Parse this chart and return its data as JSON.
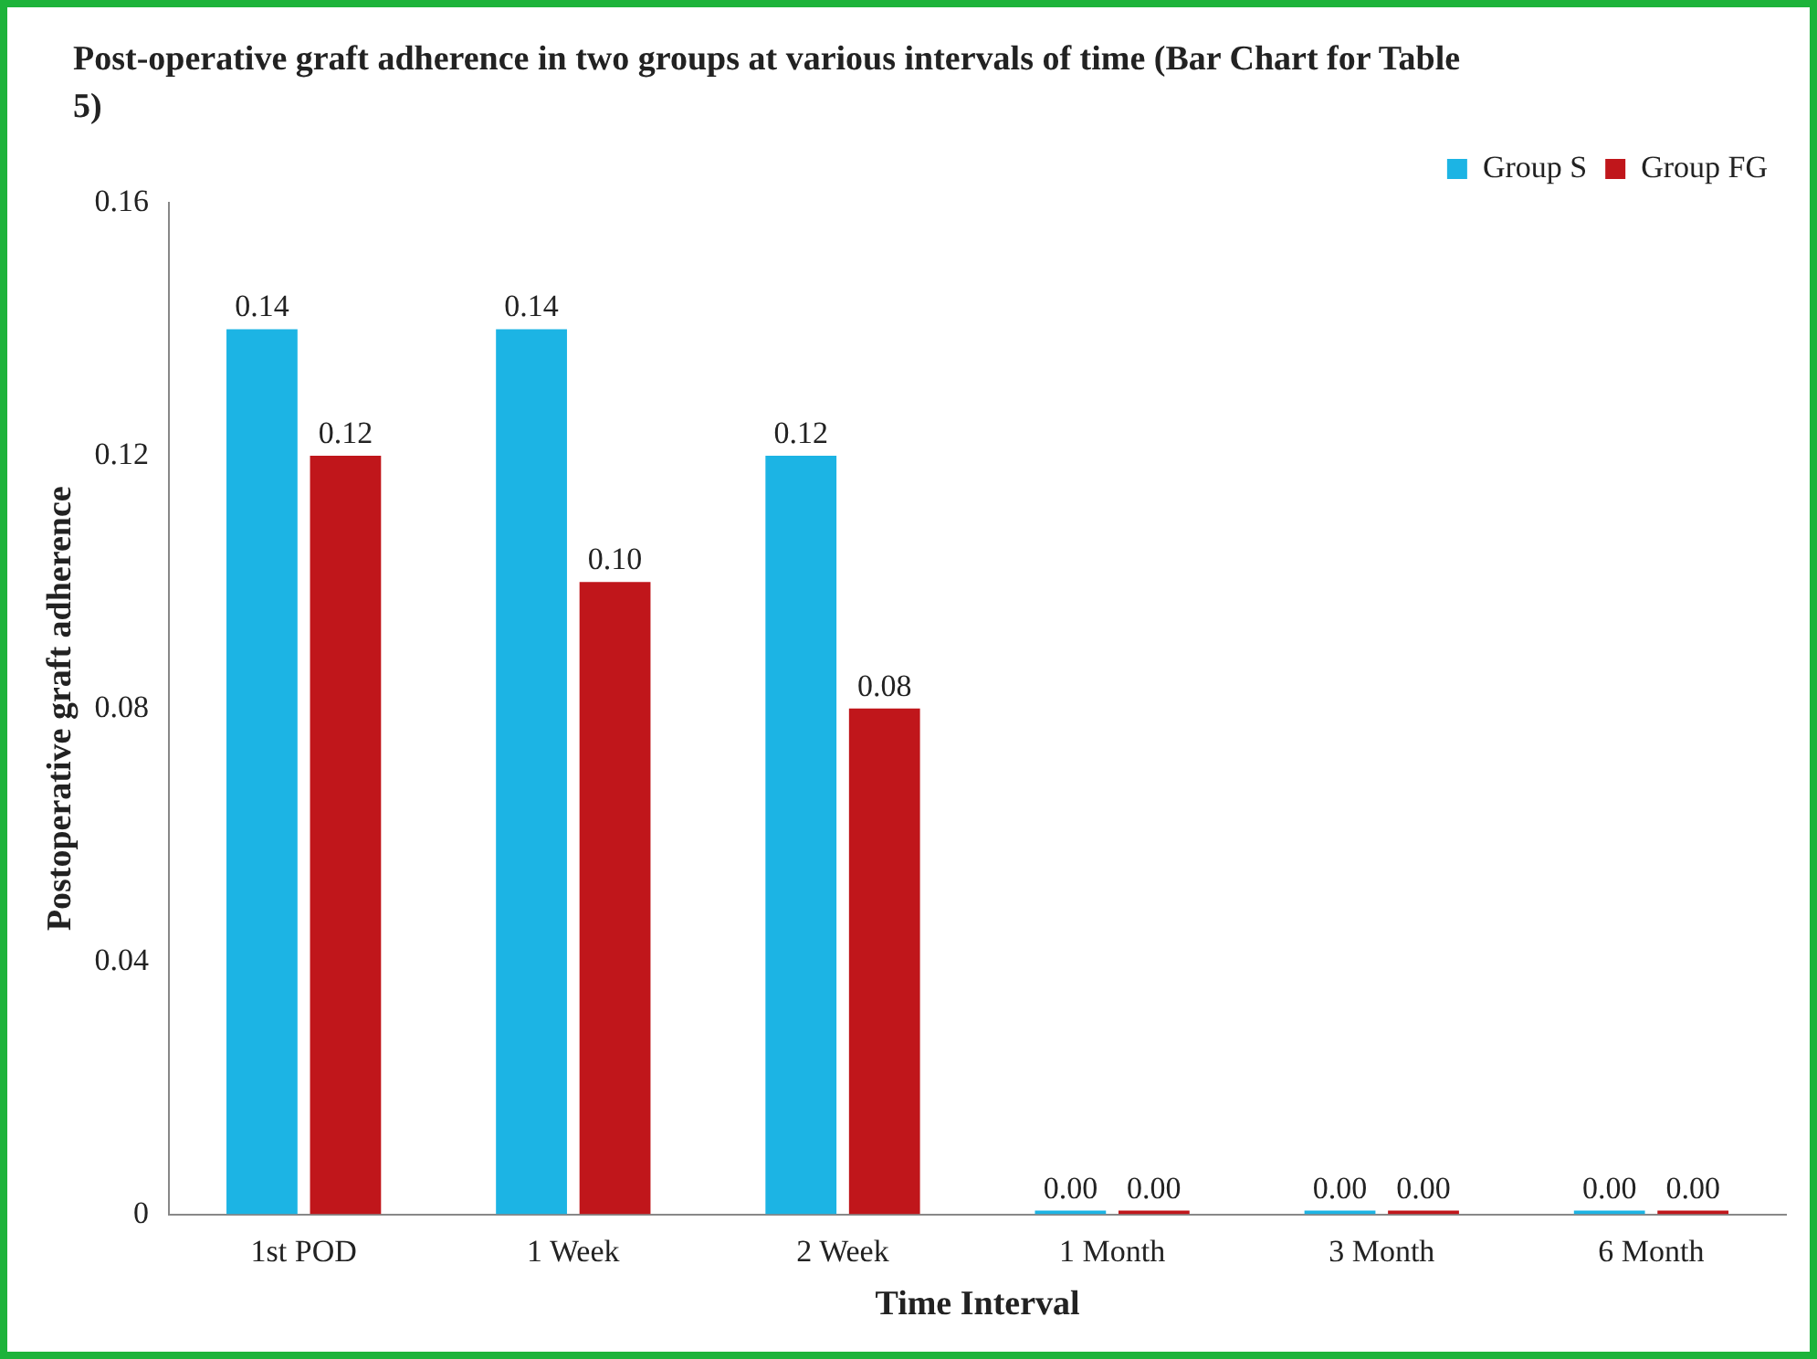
{
  "chart_data": {
    "type": "bar",
    "title": "Post-operative graft adherence in two groups at various intervals of time (Bar Chart for Table 5)",
    "xlabel": "Time Interval",
    "ylabel": "Postoperative graft adherence",
    "categories": [
      "1st POD",
      "1 Week",
      "2 Week",
      "1 Month",
      "3 Month",
      "6 Month"
    ],
    "series": [
      {
        "name": "Group S",
        "color": "#1cb4e4",
        "values": [
          0.14,
          0.14,
          0.12,
          0,
          0,
          0
        ],
        "value_labels": [
          "0.14",
          "0.14",
          "0.12",
          "0.00",
          "0.00",
          "0.00"
        ]
      },
      {
        "name": "Group FG",
        "color": "#c0161b",
        "values": [
          0.12,
          0.1,
          0.08,
          0,
          0,
          0
        ],
        "value_labels": [
          "0.12",
          "0.10",
          "0.08",
          "0.00",
          "0.00",
          "0.00"
        ]
      }
    ],
    "ylim": [
      0,
      0.16
    ],
    "yticks": [
      0,
      0.04,
      0.08,
      0.12,
      0.16
    ],
    "grid": false,
    "legend": "top right"
  }
}
